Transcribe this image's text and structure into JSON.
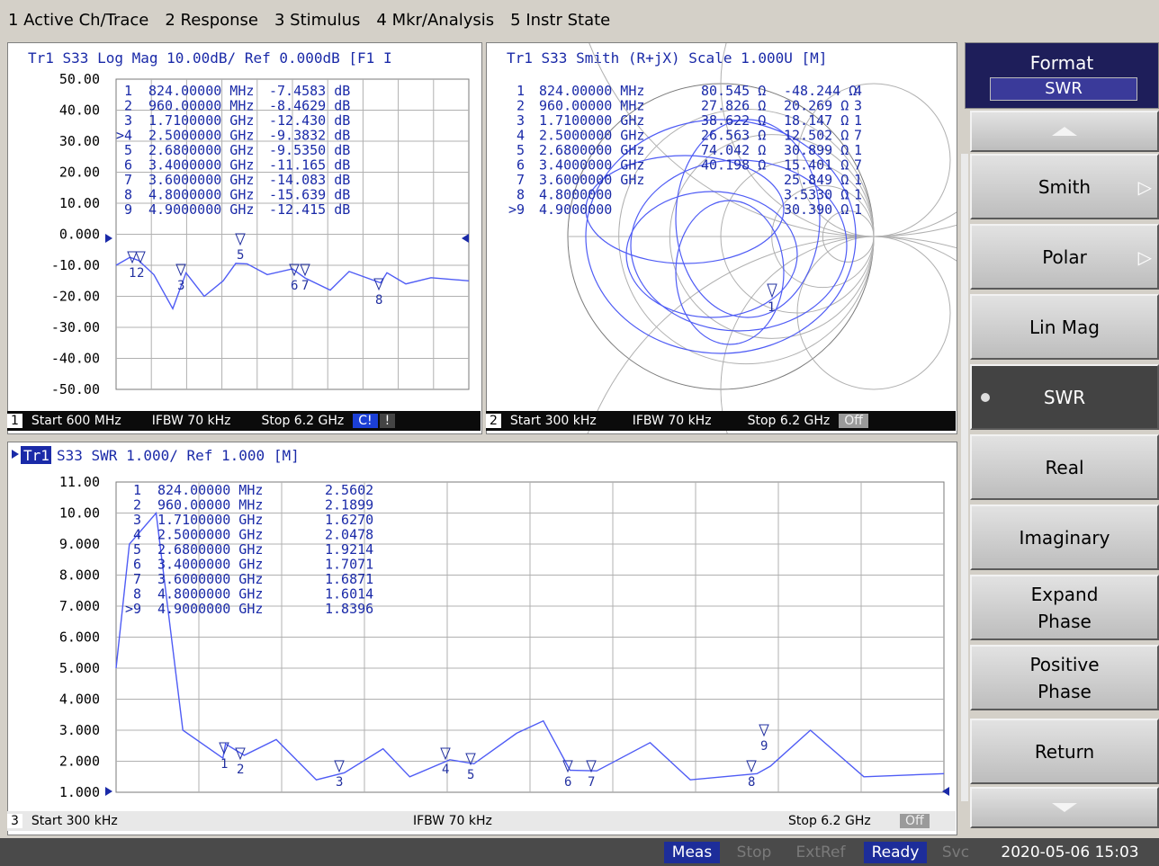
{
  "menu": [
    "1 Active Ch/Trace",
    "2 Response",
    "3 Stimulus",
    "4 Mkr/Analysis",
    "5 Instr State"
  ],
  "ch1": {
    "header": "Tr1 S33 Log Mag 10.00dB/ Ref 0.000dB [F1 I",
    "yticks": [
      "50.00",
      "40.00",
      "30.00",
      "20.00",
      "10.00",
      "0.000",
      "-10.00",
      "-20.00",
      "-30.00",
      "-40.00",
      "-50.00"
    ],
    "marker_rows": [
      [
        "1",
        "824.00000 MHz",
        "-7.4583 dB"
      ],
      [
        "2",
        "960.00000 MHz",
        "-8.4629 dB"
      ],
      [
        "3",
        "1.7100000 GHz",
        "-12.430 dB"
      ],
      [
        ">4",
        "2.5000000 GHz",
        "-9.3832 dB"
      ],
      [
        "5",
        "2.6800000 GHz",
        "-9.5350 dB"
      ],
      [
        "6",
        "3.4000000 GHz",
        "-11.165 dB"
      ],
      [
        "7",
        "3.6000000 GHz",
        "-14.083 dB"
      ],
      [
        "8",
        "4.8000000 GHz",
        "-15.639 dB"
      ],
      [
        "9",
        "4.9000000 GHz",
        "-12.415 dB"
      ]
    ],
    "status": {
      "num": "1",
      "start": "Start 600 MHz",
      "ifbw": "IFBW 70 kHz",
      "stop": "Stop 6.2 GHz",
      "badge": "C!",
      "badge2": "!"
    }
  },
  "ch2": {
    "header": "Tr1 S33 Smith (R+jX) Scale 1.000U [M]",
    "marker_rows": [
      [
        "1",
        "824.00000 MHz",
        "80.545 Ω",
        "-48.244 Ω",
        "4"
      ],
      [
        "2",
        "960.00000 MHz",
        "27.826 Ω",
        "20.269 Ω",
        "3"
      ],
      [
        "3",
        "1.7100000 GHz",
        "38.622 Ω",
        "18.147 Ω",
        "1"
      ],
      [
        "4",
        "2.5000000 GHz",
        "26.563 Ω",
        "12.502 Ω",
        "7"
      ],
      [
        "5",
        "2.6800000 GHz",
        "74.042 Ω",
        "30.899 Ω",
        "1"
      ],
      [
        "6",
        "3.4000000 GHz",
        "40.198 Ω",
        "15.401 Ω",
        "7"
      ],
      [
        "7",
        "3.6000000 GHz",
        "",
        "25.849 Ω",
        "1"
      ],
      [
        "8",
        "4.8000000",
        "",
        "3.5330 Ω",
        "1"
      ],
      [
        ">9",
        "4.9000000",
        "",
        "30.390 Ω",
        "1"
      ]
    ],
    "status": {
      "num": "2",
      "start": "Start 300 kHz",
      "ifbw": "IFBW 70 kHz",
      "stop": "Stop 6.2 GHz",
      "badge": "Off"
    }
  },
  "ch3": {
    "header": "Tr1 S33 SWR 1.000/ Ref 1.000 [M]",
    "header_tag": "Tr1",
    "yticks": [
      "11.00",
      "10.00",
      "9.000",
      "8.000",
      "7.000",
      "6.000",
      "5.000",
      "4.000",
      "3.000",
      "2.000",
      "1.000"
    ],
    "marker_rows": [
      [
        "1",
        "824.00000 MHz",
        "2.5602"
      ],
      [
        "2",
        "960.00000 MHz",
        "2.1899"
      ],
      [
        "3",
        "1.7100000 GHz",
        "1.6270"
      ],
      [
        "4",
        "2.5000000 GHz",
        "2.0478"
      ],
      [
        "5",
        "2.6800000 GHz",
        "1.9214"
      ],
      [
        "6",
        "3.4000000 GHz",
        "1.7071"
      ],
      [
        "7",
        "3.6000000 GHz",
        "1.6871"
      ],
      [
        "8",
        "4.8000000 GHz",
        "1.6014"
      ],
      [
        ">9",
        "4.9000000 GHz",
        "1.8396"
      ]
    ],
    "status": {
      "num": "3",
      "start": "Start 300 kHz",
      "ifbw": "IFBW 70 kHz",
      "stop": "Stop 6.2 GHz",
      "badge": "Off"
    }
  },
  "softkeys": {
    "title": "Format",
    "value": "SWR",
    "items": [
      "Smith",
      "Polar",
      "Lin Mag",
      "SWR",
      "Real",
      "Imaginary",
      "Expand\nPhase",
      "Positive\nPhase",
      "Return"
    ],
    "active": "SWR"
  },
  "statusbar": {
    "meas": "Meas",
    "stop": "Stop",
    "extref": "ExtRef",
    "ready": "Ready",
    "svc": "Svc",
    "datetime": "2020-05-06 15:03"
  },
  "colors": {
    "trace": "#4f5cf5",
    "marker": "#2230a0",
    "grid": "#b0b0b0",
    "text": "#1a2aa8"
  },
  "chart_data": [
    {
      "type": "line",
      "title": "Tr1 S33 Log Mag 10.00dB/ Ref 0.000dB",
      "ylim": [
        -50,
        50
      ],
      "series": [
        {
          "name": "S33",
          "x_GHz": [
            0.6,
            0.82,
            0.96,
            1.2,
            1.5,
            1.71,
            2.0,
            2.3,
            2.5,
            2.68,
            3.0,
            3.4,
            3.6,
            4.0,
            4.3,
            4.8,
            4.9,
            5.2,
            5.6,
            6.2
          ],
          "y_dB": [
            -10,
            -7.46,
            -8.46,
            -13,
            -24,
            -12.43,
            -20,
            -15,
            -9.38,
            -9.54,
            -13,
            -11.17,
            -14.08,
            -18,
            -12,
            -15.64,
            -12.42,
            -16,
            -14,
            -15
          ]
        }
      ]
    },
    {
      "type": "line",
      "title": "Tr1 S33 SWR 1.000/ Ref 1.000",
      "ylim": [
        1,
        11
      ],
      "series": [
        {
          "name": "S33",
          "x_GHz": [
            0.0003,
            0.1,
            0.3,
            0.5,
            0.8,
            0.82,
            0.96,
            1.2,
            1.5,
            1.71,
            2.0,
            2.2,
            2.5,
            2.68,
            3.0,
            3.2,
            3.4,
            3.6,
            4.0,
            4.3,
            4.8,
            4.9,
            5.2,
            5.6,
            6.2
          ],
          "y": [
            5,
            9,
            10,
            3.0,
            2.1,
            2.56,
            2.19,
            2.7,
            1.4,
            1.63,
            2.4,
            1.5,
            2.05,
            1.92,
            2.9,
            3.3,
            1.71,
            1.69,
            2.6,
            1.4,
            1.6,
            1.84,
            3.0,
            1.5,
            1.6
          ]
        }
      ]
    }
  ]
}
